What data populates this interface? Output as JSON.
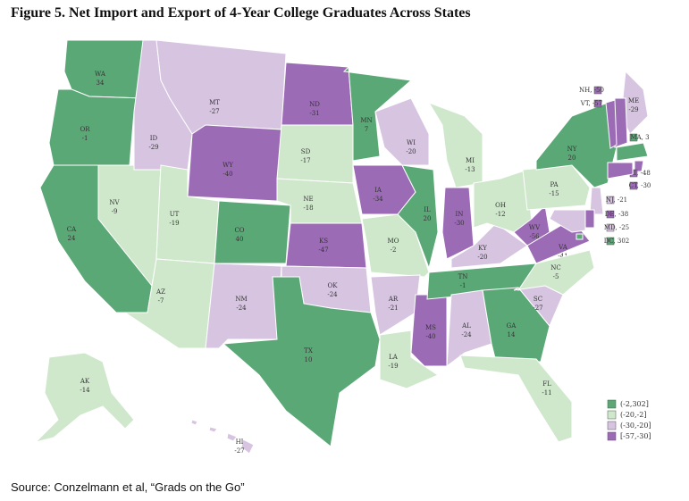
{
  "title": "Figure 5. Net Import and Export of 4-Year College Graduates Across States",
  "source": "Source: Conzelmann et al, “Grads on the Go”",
  "map": {
    "type": "choropleth",
    "legend": [
      {
        "label": "(-2,302]",
        "lo": -2,
        "hi": 302,
        "color": "#5ba877"
      },
      {
        "label": "(-20,-2]",
        "lo": -20,
        "hi": -2,
        "color": "#cfe8cc"
      },
      {
        "label": "(-30,-20]",
        "lo": -30,
        "hi": -20,
        "color": "#d7c4e1"
      },
      {
        "label": "[-57,-30]",
        "lo": -57,
        "hi": -30,
        "color": "#9c6bb6"
      }
    ],
    "regions": [
      {
        "name": "WA",
        "value": 34
      },
      {
        "name": "OR",
        "value": -1
      },
      {
        "name": "CA",
        "value": 24
      },
      {
        "name": "NV",
        "value": -9
      },
      {
        "name": "ID",
        "value": -29
      },
      {
        "name": "MT",
        "value": -27
      },
      {
        "name": "WY",
        "value": -40
      },
      {
        "name": "UT",
        "value": -19
      },
      {
        "name": "AZ",
        "value": -7
      },
      {
        "name": "CO",
        "value": 40
      },
      {
        "name": "NM",
        "value": -24
      },
      {
        "name": "ND",
        "value": -31
      },
      {
        "name": "SD",
        "value": -17
      },
      {
        "name": "NE",
        "value": -18
      },
      {
        "name": "KS",
        "value": -47
      },
      {
        "name": "OK",
        "value": -24
      },
      {
        "name": "TX",
        "value": 10
      },
      {
        "name": "MN",
        "value": 7
      },
      {
        "name": "IA",
        "value": -34
      },
      {
        "name": "MO",
        "value": -2
      },
      {
        "name": "AR",
        "value": -21
      },
      {
        "name": "LA",
        "value": -19
      },
      {
        "name": "WI",
        "value": -20
      },
      {
        "name": "IL",
        "value": 20
      },
      {
        "name": "MS",
        "value": -40
      },
      {
        "name": "MI",
        "value": -13
      },
      {
        "name": "IN",
        "value": -30
      },
      {
        "name": "KY",
        "value": -20
      },
      {
        "name": "TN",
        "value": -1
      },
      {
        "name": "AL",
        "value": -24
      },
      {
        "name": "GA",
        "value": 14
      },
      {
        "name": "FL",
        "value": -11
      },
      {
        "name": "OH",
        "value": -12
      },
      {
        "name": "WV",
        "value": -56
      },
      {
        "name": "VA",
        "value": -41
      },
      {
        "name": "NC",
        "value": -5
      },
      {
        "name": "SC",
        "value": -27
      },
      {
        "name": "PA",
        "value": -15
      },
      {
        "name": "NY",
        "value": 20
      },
      {
        "name": "ME",
        "value": -29
      },
      {
        "label": "NH, -50",
        "value": -50
      },
      {
        "label": "VT, -57",
        "value": -57
      },
      {
        "label": "MA, 3",
        "value": 3
      },
      {
        "label": "RI, -48",
        "value": -48
      },
      {
        "label": "CT, -30",
        "value": -30
      },
      {
        "label": "NJ, -21",
        "value": -21
      },
      {
        "label": "DE, -38",
        "value": -38
      },
      {
        "label": "MD, -25",
        "value": -25
      },
      {
        "label": "DC, 302",
        "value": 302
      },
      {
        "name": "AK",
        "value": -14
      },
      {
        "name": "HI",
        "value": -27
      }
    ]
  }
}
